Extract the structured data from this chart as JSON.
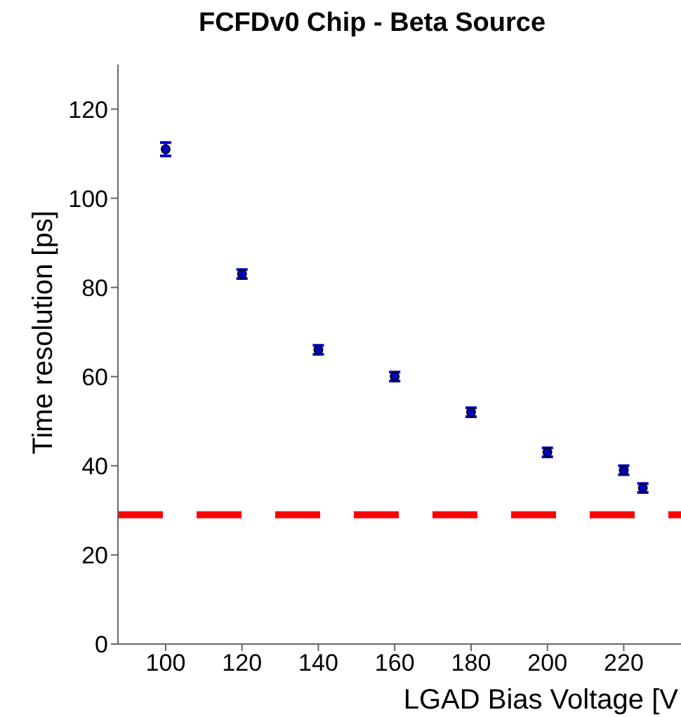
{
  "chart_data": {
    "type": "scatter",
    "title": "FCFDv0 Chip - Beta Source",
    "xlabel": "LGAD Bias Voltage [V",
    "ylabel": "Time resolution [ps]",
    "x": [
      100,
      120,
      140,
      160,
      180,
      200,
      220,
      225
    ],
    "values": [
      111,
      83,
      66,
      60,
      52,
      43,
      39,
      35
    ],
    "errors": [
      1.5,
      1,
      1,
      1,
      1,
      1,
      1,
      1
    ],
    "color": "#0000cc",
    "marker": "circle",
    "xlim": [
      87.5,
      235
    ],
    "xticks": [
      100,
      120,
      140,
      160,
      180,
      200,
      220
    ],
    "ylim": [
      0,
      130
    ],
    "yticks": [
      0,
      20,
      40,
      60,
      80,
      100,
      120
    ],
    "ref_lines": [
      {
        "axis": "y",
        "value": 29,
        "color": "#ff0000",
        "line_style": "dashed"
      }
    ]
  }
}
